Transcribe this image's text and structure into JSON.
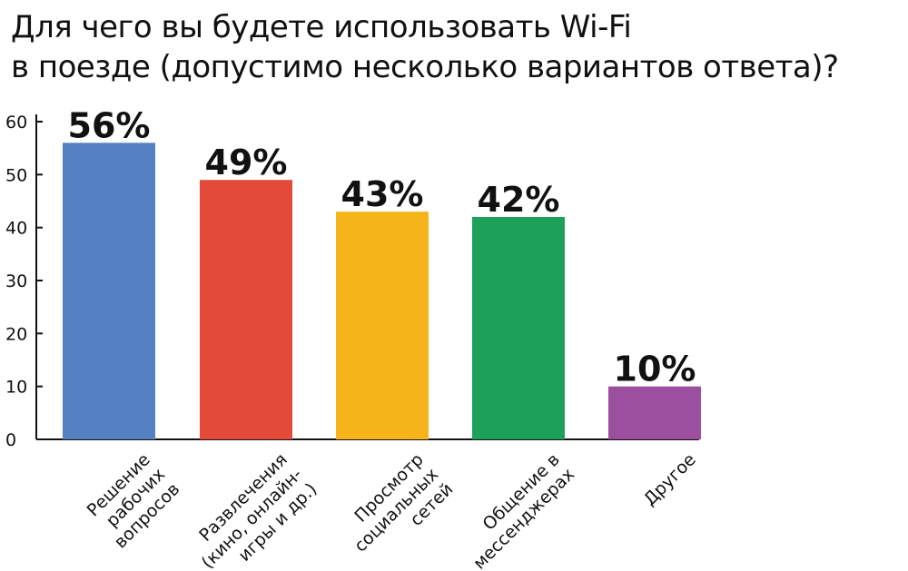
{
  "title_lines": [
    "Для чего вы будете использовать Wi-Fi",
    "в поезде (допустимо несколько вариантов ответа)?"
  ],
  "chart_data": {
    "type": "bar",
    "title": "Для чего вы будете использовать Wi-Fi в поезде (допустимо несколько вариантов ответа)?",
    "categories": [
      "Решение рабочих вопросов",
      "Развлечения (кино, онлайн-игры и др.)",
      "Просмотр социальных сетей",
      "Общение в мессенджерах",
      "Другое"
    ],
    "category_label_lines": [
      [
        "Решение",
        "рабочих",
        "вопросов"
      ],
      [
        "Развлечения",
        "(кино, онлайн-",
        "игры и др.)"
      ],
      [
        "Просмотр",
        "социальных",
        "сетей"
      ],
      [
        "Общение в",
        "мессенджерах"
      ],
      [
        "Другое"
      ]
    ],
    "values": [
      56,
      49,
      43,
      42,
      10
    ],
    "value_labels": [
      "56%",
      "49%",
      "43%",
      "42%",
      "10%"
    ],
    "colors": [
      "#5580c2",
      "#e34a3a",
      "#f4b41a",
      "#1ca05a",
      "#9b4f9e"
    ],
    "y_ticks": [
      "0",
      "10",
      "20",
      "30",
      "40",
      "50",
      "60"
    ],
    "ylim": [
      0,
      60
    ],
    "xlabel": "",
    "ylabel": "",
    "grid": false,
    "legend": "none"
  }
}
